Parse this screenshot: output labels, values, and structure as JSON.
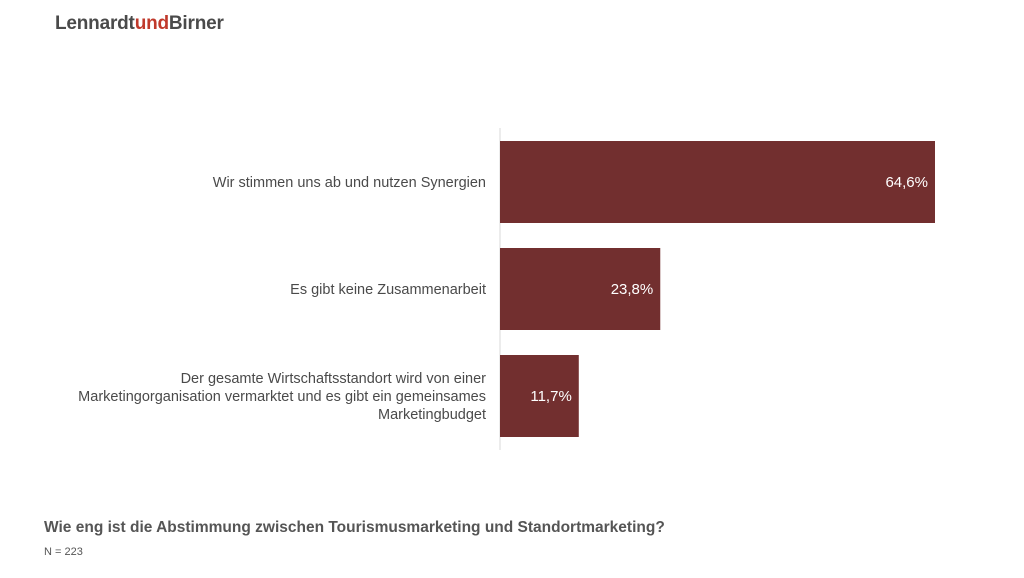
{
  "logo": {
    "part1": "Lennardt",
    "part2": "und",
    "part3": "Birner"
  },
  "question": "Wie eng ist die Abstimmung zwischen Tourismusmarketing und Standortmarketing?",
  "sample": "N = 223",
  "colors": {
    "bar": "#722f2f",
    "logo_accent": "#c0392b",
    "text": "#4a4a4a",
    "axis": "#d9d9d9"
  },
  "chart_data": {
    "type": "bar",
    "orientation": "horizontal",
    "categories": [
      [
        "Wir stimmen uns ab und nutzen Synergien"
      ],
      [
        "Es gibt keine Zusammenarbeit"
      ],
      [
        "Der gesamte Wirtschaftsstandort wird von einer",
        "Marketingorganisation vermarktet und es gibt ein gemeinsames",
        "Marketingbudget"
      ]
    ],
    "values": [
      64.6,
      23.8,
      11.7
    ],
    "value_labels": [
      "64,6%",
      "23,8%",
      "11,7%"
    ],
    "unit": "%",
    "xlim": [
      0,
      100
    ],
    "grid": false,
    "legend": "none"
  }
}
